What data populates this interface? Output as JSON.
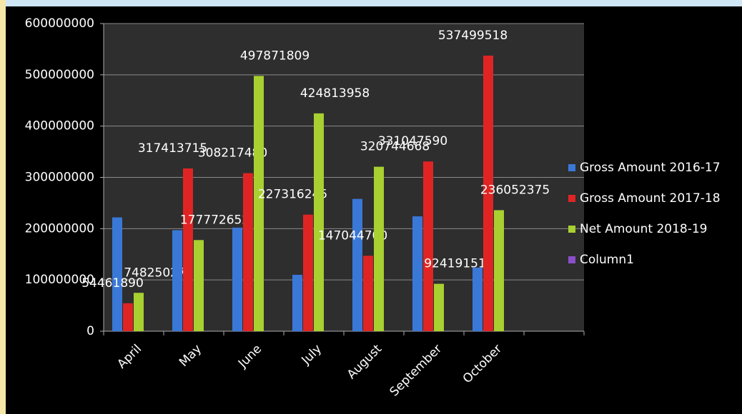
{
  "chart_data": {
    "type": "bar",
    "categories": [
      "April",
      "May",
      "June",
      "July",
      "August",
      "September",
      "October",
      null
    ],
    "series": [
      {
        "name": "Gross Amount 2016-17",
        "color": "#3a78d8",
        "show_labels": false,
        "values": [
          222000000,
          197000000,
          202000000,
          110000000,
          258000000,
          224000000,
          124000000,
          null
        ]
      },
      {
        "name": "Gross Amount 2017-18",
        "color": "#e02424",
        "show_labels": true,
        "values": [
          54461890,
          317413715,
          308217480,
          227316245,
          147044700,
          331047590,
          537499518,
          null
        ]
      },
      {
        "name": "Net Amount 2018-19",
        "color": "#a8d030",
        "show_labels": true,
        "values": [
          74825027,
          177772652,
          497871809,
          424813958,
          320744668,
          92419151,
          236052375,
          null
        ]
      },
      {
        "name": "Column1",
        "color": "#8a4fc8",
        "show_labels": false,
        "values": [
          null,
          null,
          null,
          null,
          null,
          null,
          null,
          null
        ]
      }
    ],
    "ylim": [
      0,
      600000000
    ],
    "yticks": [
      0,
      100000000,
      200000000,
      300000000,
      400000000,
      500000000,
      600000000
    ],
    "grid": true,
    "legend": "right"
  }
}
